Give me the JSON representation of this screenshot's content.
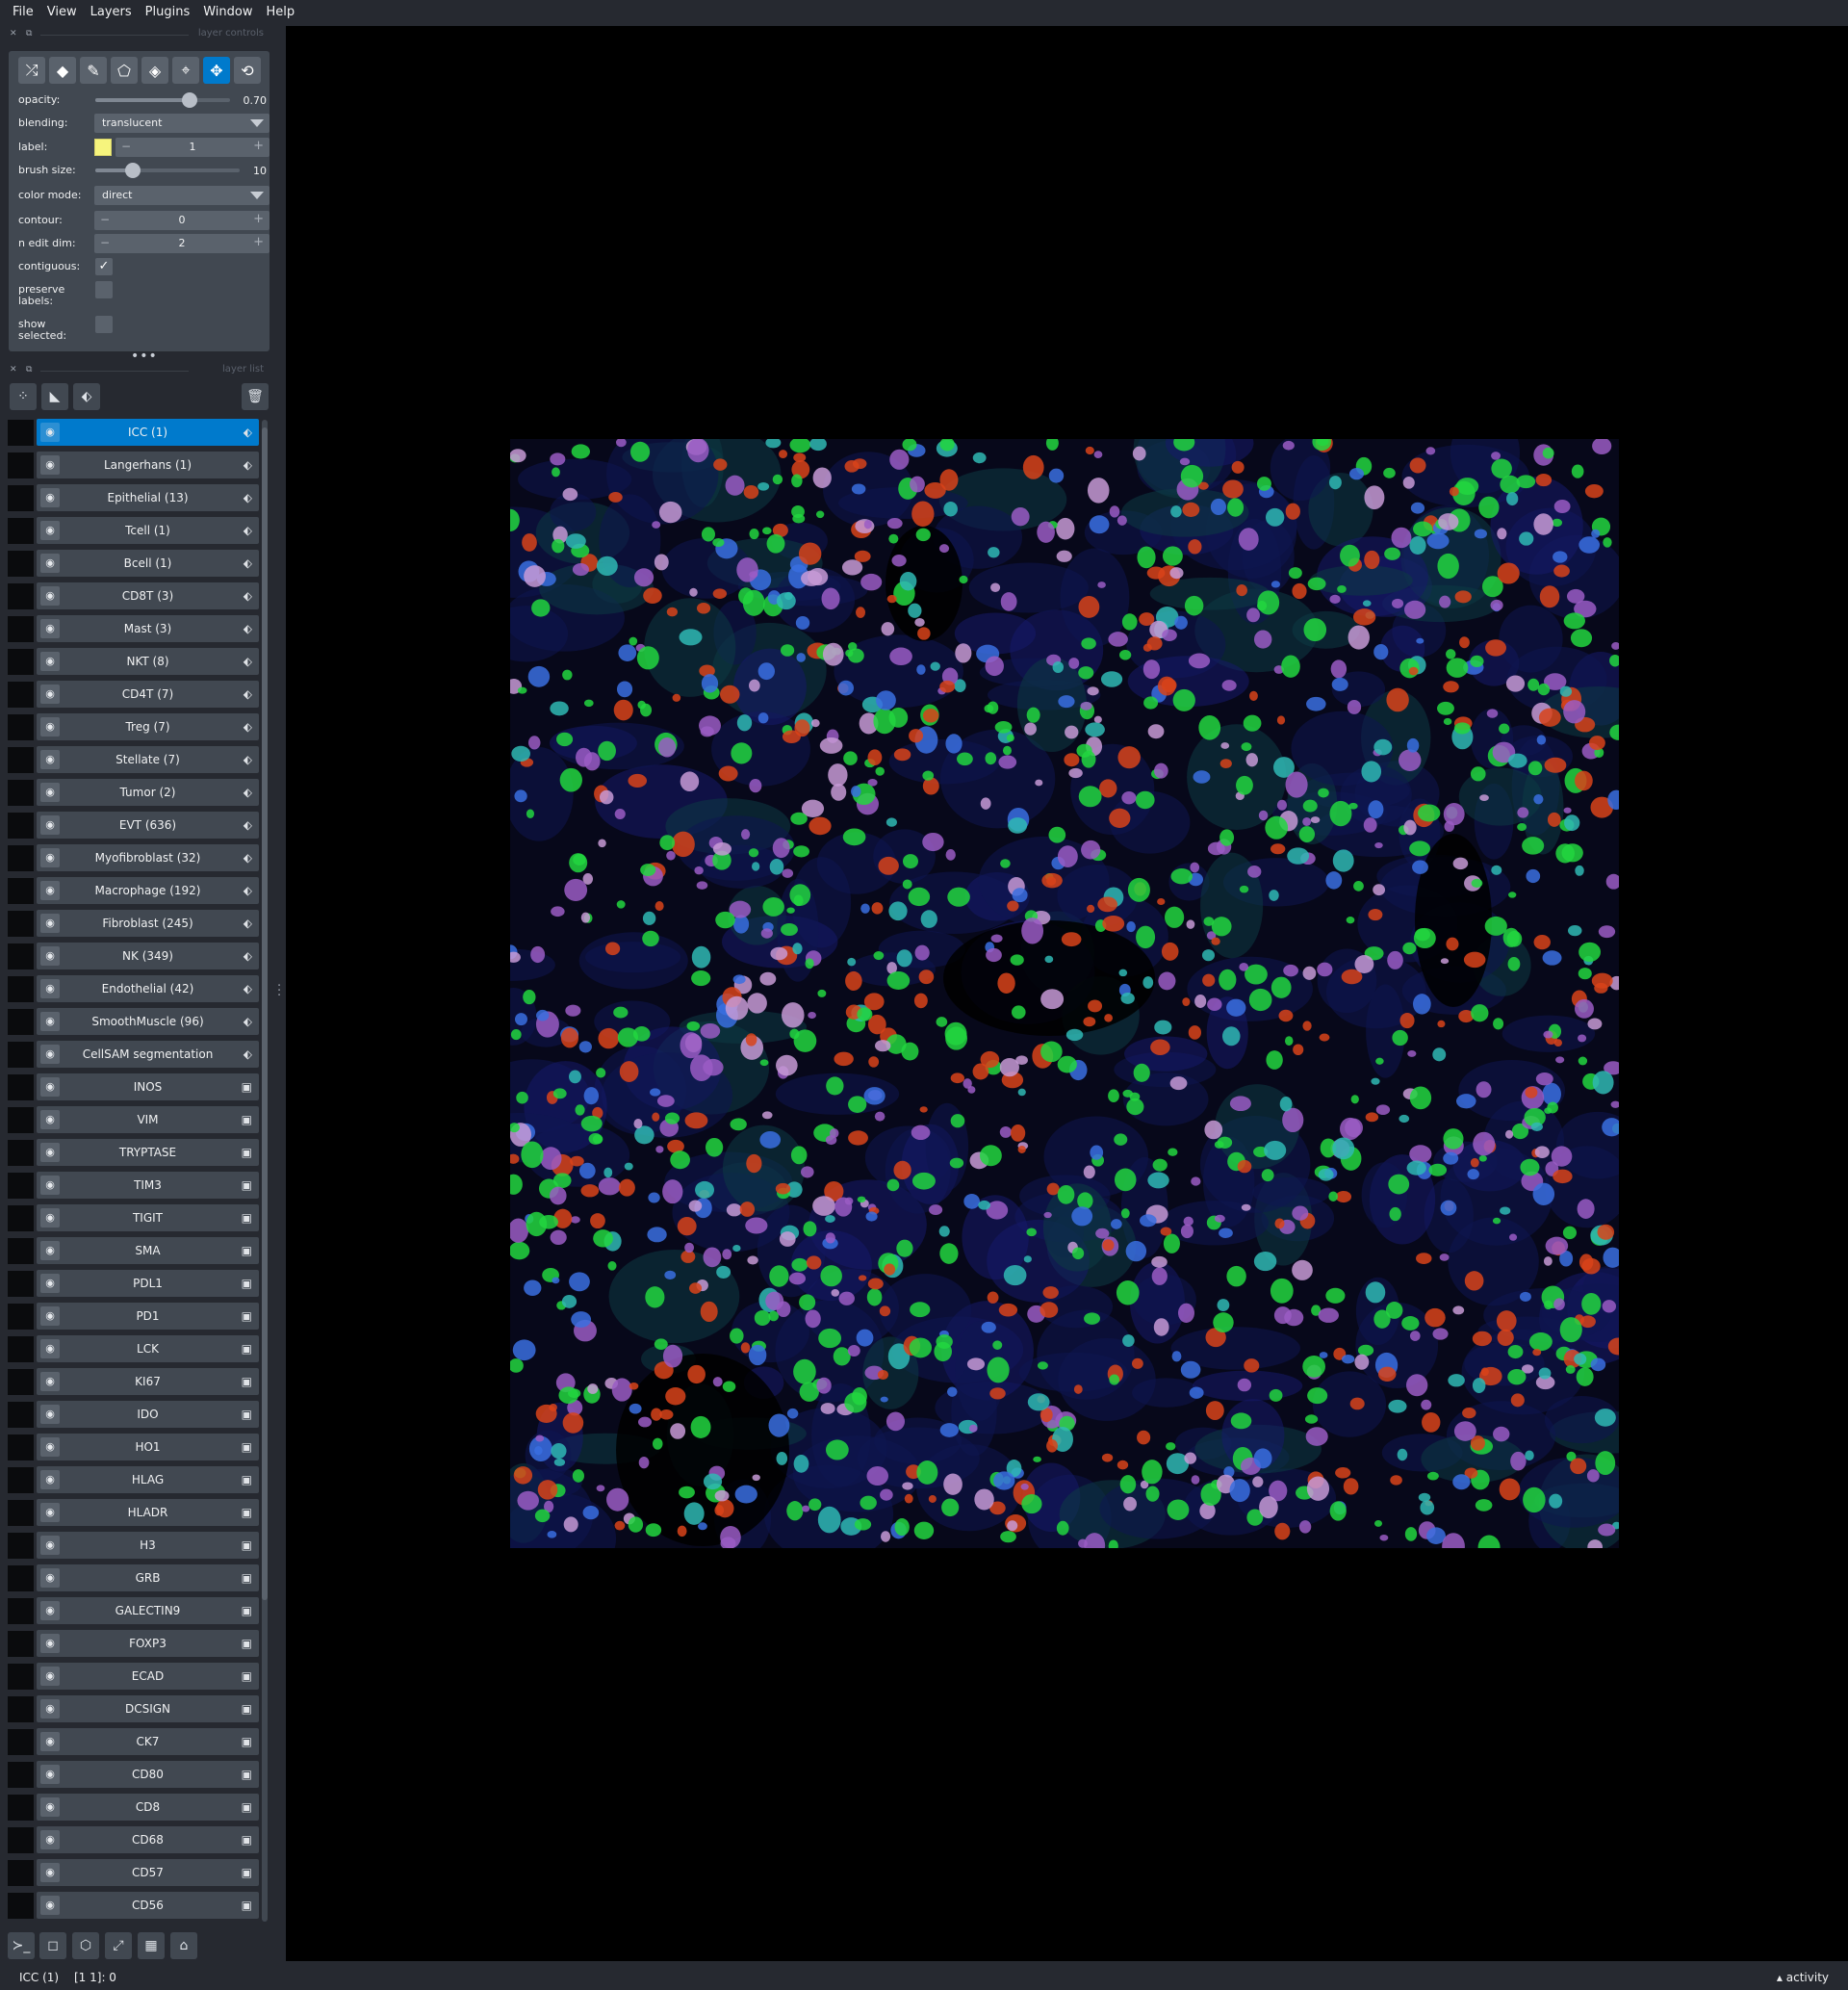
{
  "menu": [
    "File",
    "View",
    "Layers",
    "Plugins",
    "Window",
    "Help"
  ],
  "layer_controls": {
    "header": "layer controls",
    "tools": [
      "shuffle-icon",
      "eraser-icon",
      "paintbrush-icon",
      "polygon-icon",
      "fill-icon",
      "picker-icon",
      "move-icon",
      "transform-icon"
    ],
    "active_tool": "move-icon",
    "opacity_label": "opacity:",
    "opacity": 0.7,
    "opacity_text": "0.70",
    "blending_label": "blending:",
    "blending": "translucent",
    "label_label": "label:",
    "label_value": "1",
    "label_color": "#f6f47d",
    "brush_label": "brush size:",
    "brush_size_text": "10",
    "brush_fraction": 0.26,
    "color_mode_label": "color mode:",
    "color_mode": "direct",
    "contour_label": "contour:",
    "contour_value": "0",
    "n_edit_label": "n edit dim:",
    "n_edit_value": "2",
    "contiguous_label": "contiguous:",
    "contiguous": true,
    "preserve_label": "preserve labels:",
    "preserve": false,
    "show_selected_label": "show selected:",
    "show_selected": false
  },
  "layer_list": {
    "header": "layer list",
    "layers": [
      {
        "name": "ICC (1)",
        "type": "labels",
        "selected": true
      },
      {
        "name": "Langerhans (1)",
        "type": "labels"
      },
      {
        "name": "Epithelial (13)",
        "type": "labels"
      },
      {
        "name": "Tcell (1)",
        "type": "labels"
      },
      {
        "name": "Bcell (1)",
        "type": "labels"
      },
      {
        "name": "CD8T (3)",
        "type": "labels"
      },
      {
        "name": "Mast (3)",
        "type": "labels"
      },
      {
        "name": "NKT (8)",
        "type": "labels"
      },
      {
        "name": "CD4T (7)",
        "type": "labels"
      },
      {
        "name": "Treg (7)",
        "type": "labels"
      },
      {
        "name": "Stellate (7)",
        "type": "labels"
      },
      {
        "name": "Tumor (2)",
        "type": "labels"
      },
      {
        "name": "EVT (636)",
        "type": "labels"
      },
      {
        "name": "Myofibroblast (32)",
        "type": "labels"
      },
      {
        "name": "Macrophage (192)",
        "type": "labels"
      },
      {
        "name": "Fibroblast (245)",
        "type": "labels"
      },
      {
        "name": "NK (349)",
        "type": "labels"
      },
      {
        "name": "Endothelial (42)",
        "type": "labels"
      },
      {
        "name": "SmoothMuscle (96)",
        "type": "labels"
      },
      {
        "name": "CellSAM segmentation",
        "type": "labels"
      },
      {
        "name": "INOS",
        "type": "image"
      },
      {
        "name": "VIM",
        "type": "image"
      },
      {
        "name": "TRYPTASE",
        "type": "image"
      },
      {
        "name": "TIM3",
        "type": "image"
      },
      {
        "name": "TIGIT",
        "type": "image"
      },
      {
        "name": "SMA",
        "type": "image"
      },
      {
        "name": "PDL1",
        "type": "image"
      },
      {
        "name": "PD1",
        "type": "image"
      },
      {
        "name": "LCK",
        "type": "image"
      },
      {
        "name": "KI67",
        "type": "image"
      },
      {
        "name": "IDO",
        "type": "image"
      },
      {
        "name": "HO1",
        "type": "image"
      },
      {
        "name": "HLAG",
        "type": "image"
      },
      {
        "name": "HLADR",
        "type": "image"
      },
      {
        "name": "H3",
        "type": "image"
      },
      {
        "name": "GRB",
        "type": "image"
      },
      {
        "name": "GALECTIN9",
        "type": "image"
      },
      {
        "name": "FOXP3",
        "type": "image"
      },
      {
        "name": "ECAD",
        "type": "image"
      },
      {
        "name": "DCSIGN",
        "type": "image"
      },
      {
        "name": "CK7",
        "type": "image"
      },
      {
        "name": "CD80",
        "type": "image"
      },
      {
        "name": "CD8",
        "type": "image"
      },
      {
        "name": "CD68",
        "type": "image"
      },
      {
        "name": "CD57",
        "type": "image"
      },
      {
        "name": "CD56",
        "type": "image"
      }
    ]
  },
  "bottom_buttons": [
    "console-icon",
    "2d-3d-toggle-icon",
    "roll-icon",
    "transpose-icon",
    "grid-icon",
    "home-icon"
  ],
  "status": {
    "layer": "ICC (1)",
    "coord": "[1 1]: 0",
    "activity": "activity"
  },
  "colors": {
    "accent": "#007acc",
    "panel": "#414851",
    "background": "#262930",
    "cell_green": "#22d640",
    "cell_orange": "#d8431a",
    "cell_purple": "#9a5cc4",
    "cell_blue": "#3a6fe0",
    "cell_cyan": "#2fb9b4"
  }
}
